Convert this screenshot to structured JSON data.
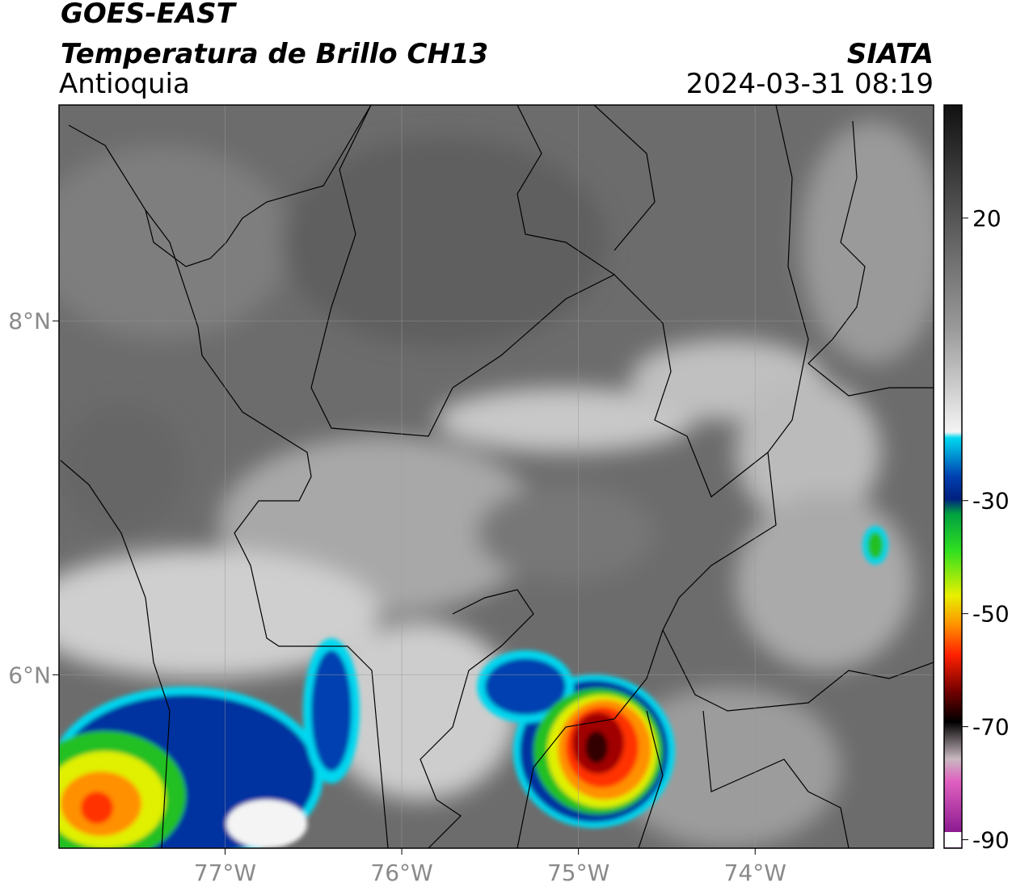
{
  "header": {
    "title": "GOES-EAST",
    "subtitle": "Temperatura de Brillo CH13",
    "region": "Antioquia",
    "source": "SIATA",
    "datetime": "2024-03-31 08:19"
  },
  "map": {
    "xlim": [
      -77.94,
      -72.99
    ],
    "ylim": [
      5.02,
      9.22
    ],
    "xticks": [
      {
        "value": -77,
        "label": "77°W"
      },
      {
        "value": -76,
        "label": "76°W"
      },
      {
        "value": -75,
        "label": "75°W"
      },
      {
        "value": -74,
        "label": "74°W"
      }
    ],
    "yticks": [
      {
        "value": 6,
        "label": "6°N"
      },
      {
        "value": 8,
        "label": "8°N"
      }
    ],
    "grid": true
  },
  "colorbar": {
    "lim": [
      -91.5,
      40
    ],
    "ticks": [
      20,
      -30,
      -50,
      -70,
      -90
    ]
  }
}
